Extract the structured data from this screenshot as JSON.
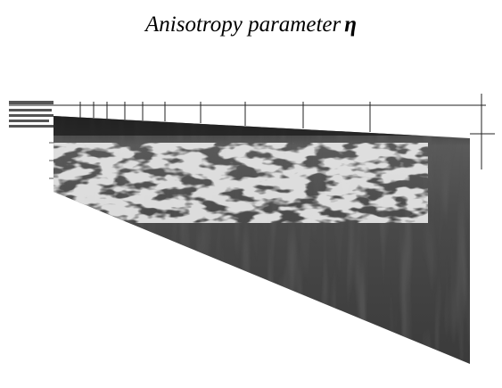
{
  "header": {
    "title": "Anisotropy parameter",
    "symbol": "η"
  }
}
